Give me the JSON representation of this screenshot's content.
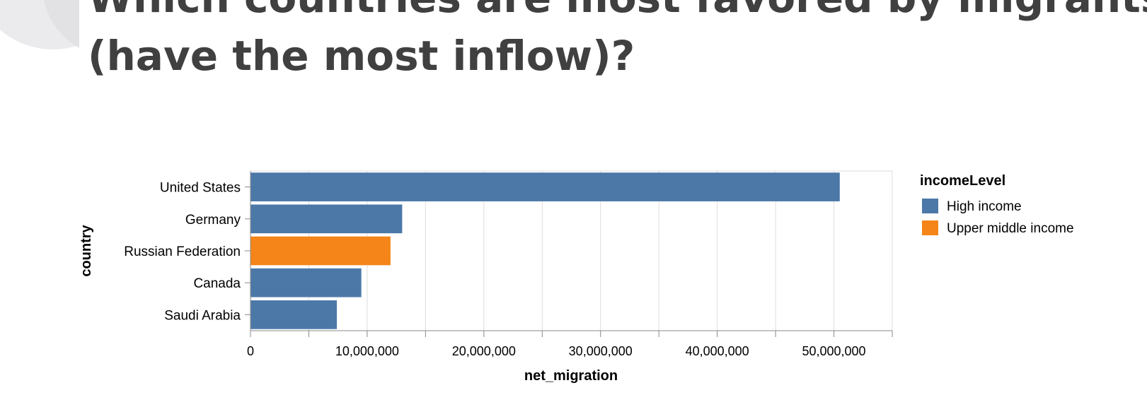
{
  "slide": {
    "title_line1": "Which countries are most favored by migrants",
    "title_line2": "(have the most inflow)?"
  },
  "chart_data": {
    "type": "bar",
    "orientation": "horizontal",
    "xlabel": "net_migration",
    "ylabel": "country",
    "xlim": [
      0,
      55000000
    ],
    "xticks": [
      0,
      10000000,
      20000000,
      30000000,
      40000000,
      50000000
    ],
    "xtick_labels": [
      "0",
      "10,000,000",
      "20,000,000",
      "30,000,000",
      "40,000,000",
      "50,000,000"
    ],
    "grid": true,
    "categories": [
      "United States",
      "Germany",
      "Russian Federation",
      "Canada",
      "Saudi Arabia"
    ],
    "values": [
      50500000,
      13000000,
      12000000,
      9500000,
      7400000
    ],
    "color_field": [
      "High income",
      "High income",
      "Upper middle income",
      "High income",
      "High income"
    ],
    "legend": {
      "title": "incomeLevel",
      "placement": "right",
      "entries": [
        {
          "label": "High income",
          "color": "#4c78a8"
        },
        {
          "label": "Upper middle income",
          "color": "#f58518"
        }
      ]
    }
  }
}
